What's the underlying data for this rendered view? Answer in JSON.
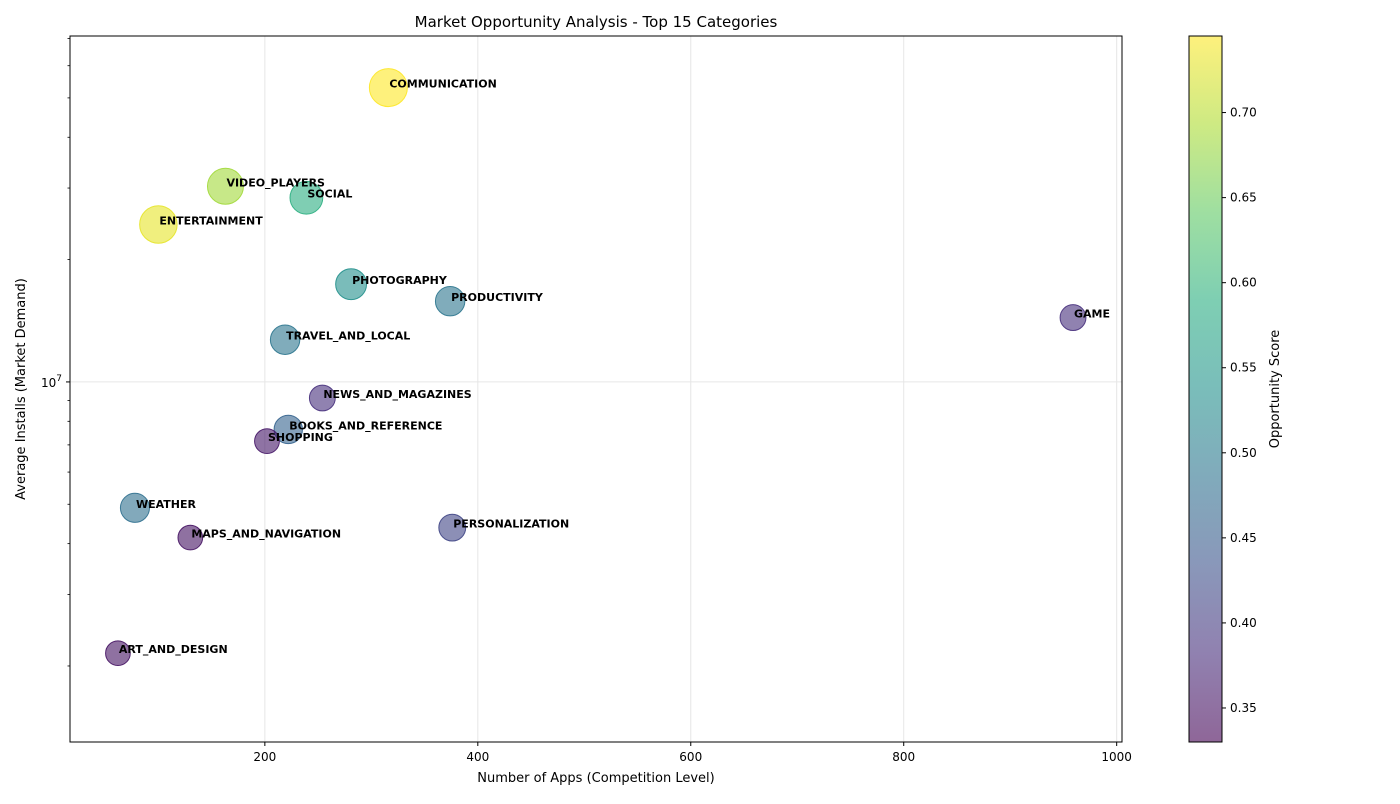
{
  "chart_data": {
    "type": "scatter",
    "title": "Market Opportunity Analysis - Top 15 Categories",
    "xlabel": "Number of Apps (Competition Level)",
    "ylabel": "Average Installs (Market Demand)",
    "colorbar_label": "Opportunity Score",
    "xlim": [
      17,
      1005
    ],
    "ylim": [
      1300000,
      71000000
    ],
    "yscale": "log",
    "grid": true,
    "x_ticks": [
      200,
      400,
      600,
      800,
      1000
    ],
    "x_tick_labels": [
      "200",
      "400",
      "600",
      "800",
      "1000"
    ],
    "y_major_tick_label": {
      "value": 10000000,
      "base": "10",
      "exponent": "7"
    },
    "colorbar_range": [
      0.33,
      0.745
    ],
    "colorbar_ticks": [
      0.35,
      0.4,
      0.45,
      0.5,
      0.55,
      0.6,
      0.65,
      0.7
    ],
    "colorbar_tick_labels": [
      "0.35",
      "0.40",
      "0.45",
      "0.50",
      "0.55",
      "0.60",
      "0.65",
      "0.70"
    ],
    "points": [
      {
        "label": "COMMUNICATION",
        "x": 316,
        "y": 53000000,
        "score": 0.745
      },
      {
        "label": "VIDEO_PLAYERS",
        "x": 163,
        "y": 30300000,
        "score": 0.685
      },
      {
        "label": "SOCIAL",
        "x": 239,
        "y": 28400000,
        "score": 0.59
      },
      {
        "label": "ENTERTAINMENT",
        "x": 100,
        "y": 24400000,
        "score": 0.73
      },
      {
        "label": "PHOTOGRAPHY",
        "x": 281,
        "y": 17400000,
        "score": 0.535
      },
      {
        "label": "PRODUCTIVITY",
        "x": 374,
        "y": 15800000,
        "score": 0.49
      },
      {
        "label": "GAME",
        "x": 959,
        "y": 14400000,
        "score": 0.385
      },
      {
        "label": "TRAVEL_AND_LOCAL",
        "x": 219,
        "y": 12700000,
        "score": 0.49
      },
      {
        "label": "NEWS_AND_MAGAZINES",
        "x": 254,
        "y": 9130000,
        "score": 0.385
      },
      {
        "label": "BOOKS_AND_REFERENCE",
        "x": 222,
        "y": 7640000,
        "score": 0.46
      },
      {
        "label": "SHOPPING",
        "x": 202,
        "y": 7150000,
        "score": 0.355
      },
      {
        "label": "WEATHER",
        "x": 78,
        "y": 4900000,
        "score": 0.48
      },
      {
        "label": "PERSONALIZATION",
        "x": 376,
        "y": 4380000,
        "score": 0.415
      },
      {
        "label": "MAPS_AND_NAVIGATION",
        "x": 130,
        "y": 4140000,
        "score": 0.35
      },
      {
        "label": "ART_AND_DESIGN",
        "x": 62,
        "y": 2150000,
        "score": 0.35
      }
    ]
  }
}
